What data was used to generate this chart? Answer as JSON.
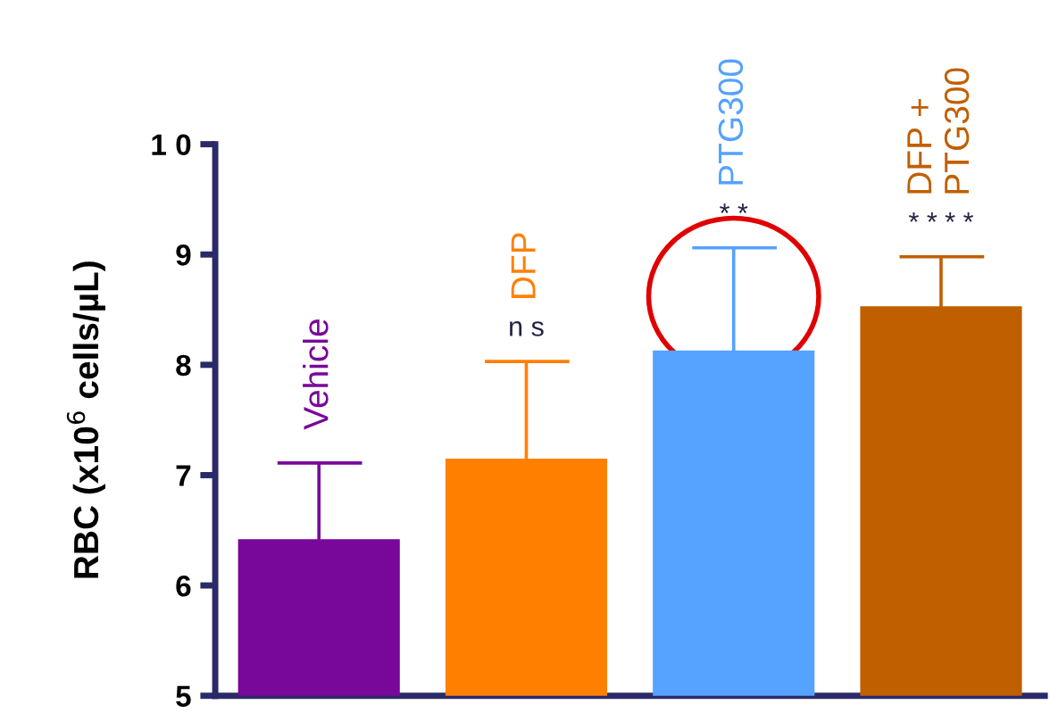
{
  "chart_data": {
    "type": "bar",
    "ylabel": "RBC (x10$^{6}$ cells/µL)",
    "categories": [
      "Vehicle",
      "DFP",
      "PTG300",
      "DFP + PTG300"
    ],
    "values": [
      6.42,
      7.15,
      8.13,
      8.53
    ],
    "colors": [
      "#770899",
      "#ff8000",
      "#55a2ff",
      "#c05f00"
    ],
    "errors": [
      [
        6.42,
        7.11
      ],
      [
        7.15,
        8.03
      ],
      [
        8.13,
        9.06
      ],
      [
        8.53,
        8.98
      ]
    ],
    "annotations": [
      {
        "text": "n s",
        "x": "DFP",
        "y": 8.03
      },
      {
        "text": "* *",
        "x": "PTG300",
        "y": 9.06
      },
      {
        "text": "* * * *",
        "x": "DFP + PTG300",
        "y": 8.98
      }
    ],
    "ylim": [
      5,
      10
    ],
    "yticks": [
      5,
      6,
      7,
      8,
      9,
      {
        "value": 10,
        "label": "1 0"
      }
    ],
    "grid": false
  }
}
